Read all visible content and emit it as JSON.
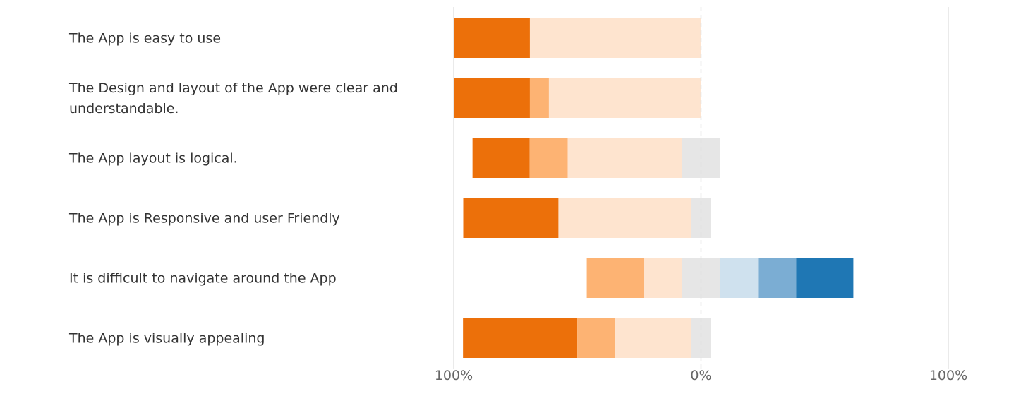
{
  "chart_data": {
    "type": "bar",
    "stacked": true,
    "orientation": "horizontal",
    "diverging": true,
    "title": "",
    "xlabel": "",
    "ylabel": "",
    "xlim": [
      -100,
      100
    ],
    "x_tick_labels": [
      "100%",
      "0%",
      "100%"
    ],
    "grid": false,
    "legend": "none",
    "categories": [
      "The App is easy to use",
      "The Design and layout of the App were clear and understandable.",
      "The App layout is logical.",
      "The App is Responsive and user Friendly",
      "It is difficult to navigate around the App",
      "The App is visually appealing"
    ],
    "series": [
      {
        "color": "#ec700a",
        "values": [
          30.8,
          30.8,
          23.1,
          38.5,
          0,
          46.2
        ]
      },
      {
        "color": "#fdb373",
        "values": [
          0,
          7.7,
          15.4,
          0,
          23.1,
          15.4
        ]
      },
      {
        "color": "#fee4cf",
        "values": [
          69.2,
          61.5,
          46.2,
          53.8,
          15.4,
          30.8
        ]
      },
      {
        "color": "#e6e6e6",
        "values": [
          0,
          0,
          15.4,
          7.7,
          15.4,
          7.7
        ],
        "centered": true
      },
      {
        "color": "#cfe1ee",
        "values": [
          0,
          0,
          0,
          0,
          15.4,
          0
        ]
      },
      {
        "color": "#7badd3",
        "values": [
          0,
          0,
          0,
          0,
          15.4,
          0
        ]
      },
      {
        "color": "#1f77b4",
        "values": [
          0,
          0,
          0,
          0,
          23.1,
          0
        ]
      }
    ]
  }
}
